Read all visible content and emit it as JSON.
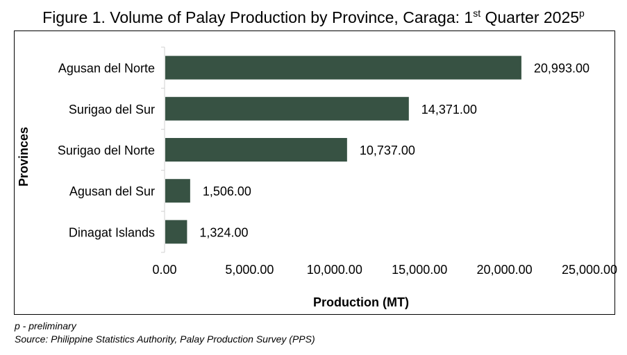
{
  "figure": {
    "title_main": "Figure 1. Volume of Palay Production by Province, Caraga: 1",
    "title_sup1": "st",
    "title_mid": " Quarter 2025",
    "title_sup2": "p"
  },
  "notes": {
    "preliminary": "p - preliminary",
    "source": "Source: Philippine Statistics Authority, Palay Production Survey (PPS)"
  },
  "chart_data": {
    "type": "bar",
    "orientation": "horizontal",
    "categories": [
      "Agusan del Norte",
      "Surigao del Sur",
      "Surigao del Norte",
      "Agusan del Sur",
      "Dinagat Islands"
    ],
    "values": [
      20993,
      14371,
      10737,
      1506,
      1324
    ],
    "value_labels": [
      "20,993.00",
      "14,371.00",
      "10,737.00",
      "1,506.00",
      "1,324.00"
    ],
    "xlabel": "Production (MT)",
    "ylabel": "Provinces",
    "xlim": [
      0,
      25000
    ],
    "xticks": [
      0,
      5000,
      10000,
      15000,
      20000,
      25000
    ],
    "xtick_labels": [
      "0.00",
      "5,000.00",
      "10,000.00",
      "15,000.00",
      "20,000.00",
      "25,000.00"
    ],
    "grid": false,
    "bar_color": "#375243"
  }
}
